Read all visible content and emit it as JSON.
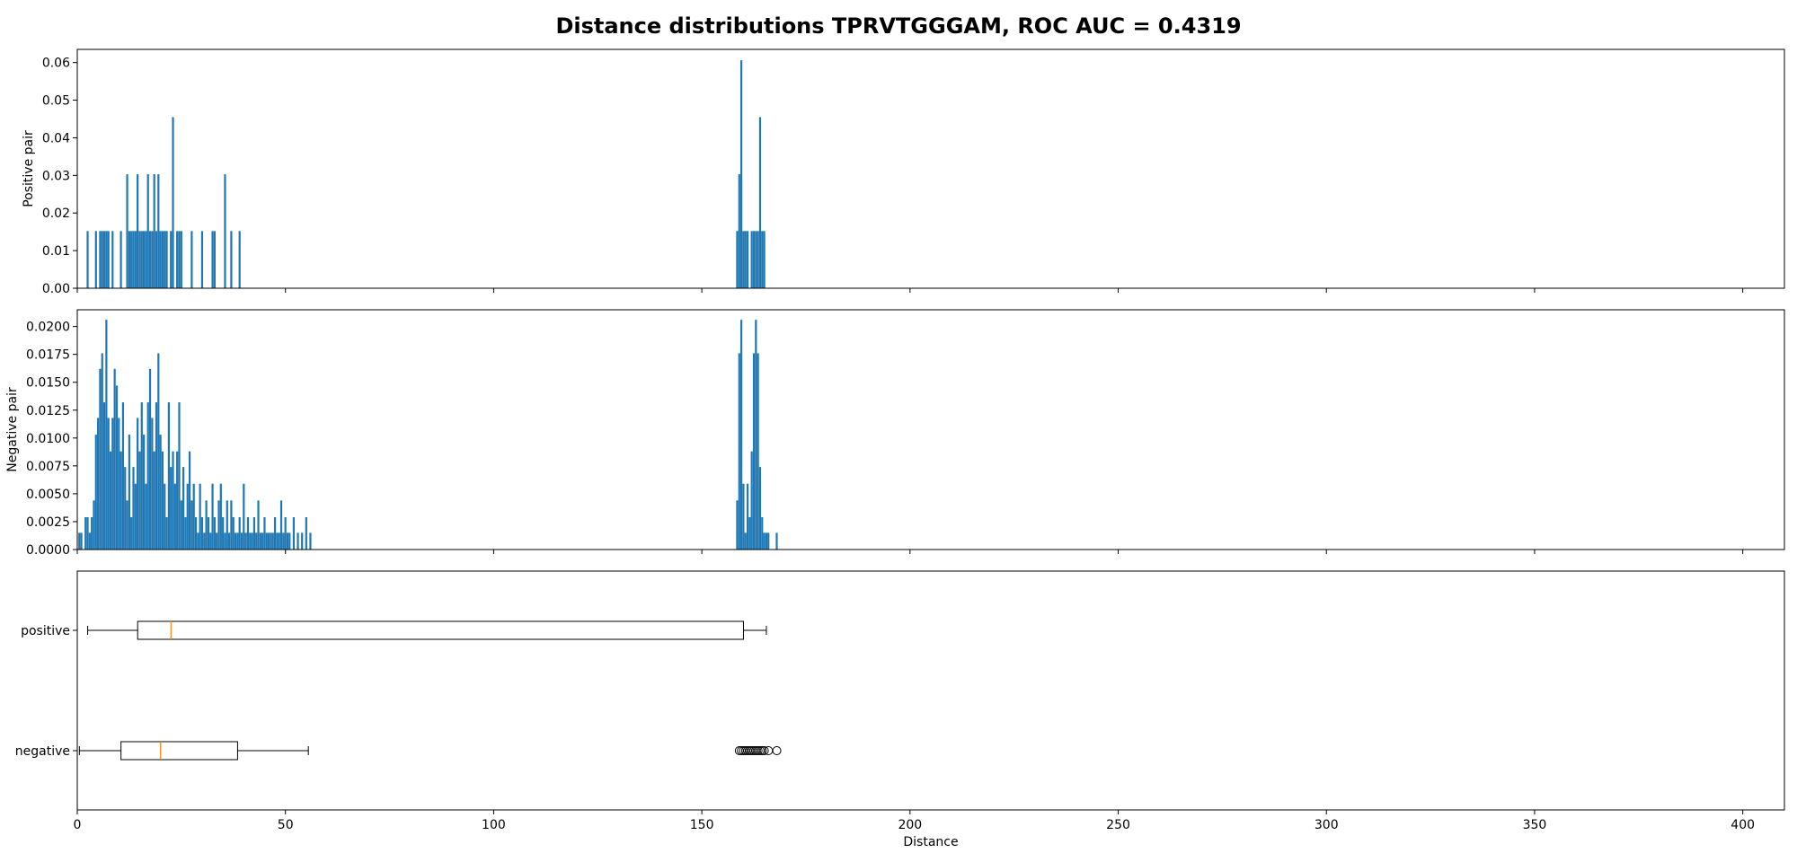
{
  "title": "Distance distributions TPRVTGGGAM, ROC AUC = 0.4319",
  "colors": {
    "bar": "#1f77b4",
    "median": "#ff7f0e",
    "box": "#000000",
    "frame": "#000000"
  },
  "chart_data": [
    {
      "type": "bar",
      "name": "positive-histogram",
      "ylabel": "Positive pair",
      "xlabel": "",
      "xlim": [
        0,
        410
      ],
      "ylim": [
        0,
        0.0635
      ],
      "yticks": [
        "0.00",
        "0.01",
        "0.02",
        "0.03",
        "0.04",
        "0.05",
        "0.06"
      ],
      "ytick_values": [
        0,
        0.01,
        0.02,
        0.03,
        0.04,
        0.05,
        0.06
      ],
      "x": [
        2.5,
        4.5,
        5.5,
        6.0,
        6.5,
        7.0,
        7.5,
        8.5,
        10.5,
        12.0,
        12.5,
        13.0,
        13.5,
        14.0,
        14.5,
        15.0,
        15.5,
        16.0,
        16.5,
        17.0,
        17.5,
        18.0,
        18.5,
        19.0,
        19.5,
        20.0,
        20.5,
        21.0,
        21.5,
        22.5,
        23.0,
        24.0,
        24.5,
        25.0,
        27.5,
        30.0,
        32.5,
        33.0,
        35.5,
        37.0,
        39.0,
        158.5,
        159.0,
        159.5,
        160.0,
        160.5,
        161.0,
        162.0,
        162.5,
        163.0,
        163.5,
        164.0,
        164.5,
        165.0
      ],
      "values": [
        0.0152,
        0.0152,
        0.0152,
        0.0152,
        0.0152,
        0.0152,
        0.0152,
        0.0152,
        0.0152,
        0.0303,
        0.0152,
        0.0152,
        0.0152,
        0.0152,
        0.0303,
        0.0152,
        0.0152,
        0.0152,
        0.0152,
        0.0303,
        0.0152,
        0.0152,
        0.0303,
        0.0152,
        0.0303,
        0.0152,
        0.0152,
        0.0152,
        0.0152,
        0.0152,
        0.0455,
        0.0152,
        0.0152,
        0.0152,
        0.0152,
        0.0152,
        0.0152,
        0.0152,
        0.0303,
        0.0152,
        0.0152,
        0.0152,
        0.0303,
        0.0606,
        0.0152,
        0.0152,
        0.0152,
        0.0152,
        0.0152,
        0.0152,
        0.0152,
        0.0455,
        0.0152,
        0.0152
      ]
    },
    {
      "type": "bar",
      "name": "negative-histogram",
      "ylabel": "Negative pair",
      "xlabel": "",
      "xlim": [
        0,
        410
      ],
      "ylim": [
        0,
        0.0215
      ],
      "yticks": [
        "0.0000",
        "0.0025",
        "0.0050",
        "0.0075",
        "0.0100",
        "0.0125",
        "0.0150",
        "0.0175",
        "0.0200"
      ],
      "ytick_values": [
        0,
        0.0025,
        0.005,
        0.0075,
        0.01,
        0.0125,
        0.015,
        0.0175,
        0.02
      ],
      "x": [
        0.5,
        1.0,
        2.0,
        2.5,
        3.0,
        3.5,
        4.0,
        4.5,
        5.0,
        5.5,
        6.0,
        6.5,
        7.0,
        7.5,
        8.0,
        8.5,
        9.0,
        9.5,
        10.0,
        10.5,
        11.0,
        11.5,
        12.0,
        12.5,
        13.0,
        13.5,
        14.0,
        14.5,
        15.0,
        15.5,
        16.0,
        16.5,
        17.0,
        17.5,
        18.0,
        18.5,
        19.0,
        19.5,
        20.0,
        20.5,
        21.0,
        21.5,
        22.0,
        22.5,
        23.0,
        23.5,
        24.0,
        24.5,
        25.0,
        25.5,
        26.0,
        26.5,
        27.0,
        27.5,
        28.0,
        28.5,
        29.0,
        29.5,
        30.0,
        30.5,
        31.0,
        31.5,
        32.0,
        32.5,
        33.0,
        33.5,
        34.0,
        34.5,
        35.0,
        35.5,
        36.0,
        36.5,
        37.0,
        37.5,
        38.0,
        38.5,
        39.0,
        39.5,
        40.0,
        40.5,
        41.0,
        41.5,
        42.0,
        42.5,
        43.0,
        43.5,
        44.0,
        44.5,
        45.0,
        45.5,
        46.0,
        46.5,
        47.0,
        47.5,
        48.0,
        48.5,
        49.0,
        49.5,
        50.0,
        50.5,
        51.0,
        52.0,
        53.0,
        54.0,
        55.0,
        56.0,
        158.5,
        159.0,
        159.5,
        160.0,
        160.5,
        161.0,
        161.5,
        162.0,
        162.5,
        163.0,
        163.5,
        164.0,
        164.5,
        165.0,
        165.5,
        166.0,
        168.0
      ],
      "values": [
        0.0015,
        0.0015,
        0.0029,
        0.0029,
        0.0015,
        0.0029,
        0.0044,
        0.0103,
        0.0118,
        0.0162,
        0.0176,
        0.0132,
        0.0206,
        0.0118,
        0.0088,
        0.0118,
        0.0162,
        0.0147,
        0.0118,
        0.0088,
        0.0132,
        0.0074,
        0.0044,
        0.0103,
        0.0029,
        0.0074,
        0.0059,
        0.0118,
        0.0088,
        0.0132,
        0.0103,
        0.0059,
        0.0132,
        0.0162,
        0.0118,
        0.0088,
        0.0132,
        0.0176,
        0.0103,
        0.0088,
        0.0059,
        0.0029,
        0.0132,
        0.0074,
        0.0088,
        0.0059,
        0.0088,
        0.0132,
        0.0044,
        0.0074,
        0.0029,
        0.0059,
        0.0088,
        0.0044,
        0.0059,
        0.0029,
        0.0015,
        0.0059,
        0.0029,
        0.0015,
        0.0044,
        0.0029,
        0.0015,
        0.0059,
        0.0029,
        0.0015,
        0.0044,
        0.0059,
        0.0029,
        0.0015,
        0.0044,
        0.0015,
        0.0044,
        0.0029,
        0.0015,
        0.0015,
        0.0029,
        0.0015,
        0.0059,
        0.0015,
        0.0029,
        0.0015,
        0.0015,
        0.0029,
        0.0015,
        0.0044,
        0.0015,
        0.0015,
        0.0029,
        0.0015,
        0.0015,
        0.0015,
        0.0015,
        0.0029,
        0.0015,
        0.0015,
        0.0044,
        0.0015,
        0.0029,
        0.0015,
        0.0015,
        0.0029,
        0.0015,
        0.0015,
        0.0029,
        0.0015,
        0.0044,
        0.0176,
        0.0206,
        0.0059,
        0.0015,
        0.0059,
        0.0029,
        0.0088,
        0.0176,
        0.0206,
        0.0176,
        0.0074,
        0.0029,
        0.0015,
        0.0015,
        0.0015,
        0.0015
      ],
      "xticks_hidden": true
    },
    {
      "type": "box",
      "name": "distance-boxplot",
      "xlabel": "Distance",
      "ylabel": "",
      "xlim": [
        0,
        410
      ],
      "xticks": [
        "0",
        "50",
        "100",
        "150",
        "200",
        "250",
        "300",
        "350",
        "400"
      ],
      "xtick_values": [
        0,
        50,
        100,
        150,
        200,
        250,
        300,
        350,
        400
      ],
      "boxes": [
        {
          "label": "positive",
          "whisker_low": 2.5,
          "q1": 14.5,
          "median": 22.5,
          "q3": 160.0,
          "whisker_high": 165.5,
          "outliers": []
        },
        {
          "label": "negative",
          "whisker_low": 0.5,
          "q1": 10.5,
          "median": 20.0,
          "q3": 38.5,
          "whisker_high": 55.5,
          "outliers": [
            159.0,
            159.5,
            160.0,
            160.5,
            161.0,
            161.5,
            162.0,
            162.5,
            163.0,
            163.5,
            164.0,
            164.5,
            165.0,
            166.0,
            168.0
          ]
        }
      ]
    }
  ]
}
